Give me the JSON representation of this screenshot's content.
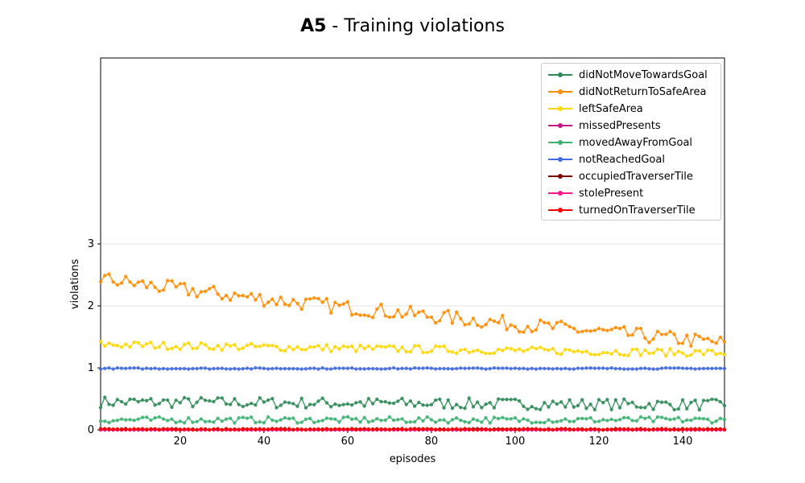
{
  "chart_data": {
    "type": "line",
    "title_bold": "A5",
    "title_rest": " - Training violations",
    "xlabel": "episodes",
    "ylabel": "violations",
    "xlim": [
      1,
      150
    ],
    "ylim": [
      0,
      6
    ],
    "xticks": [
      20,
      40,
      60,
      80,
      100,
      120,
      140
    ],
    "yticks": [
      0,
      1,
      2,
      3
    ],
    "grid": "horizontal",
    "legend_position": "top-right",
    "series": [
      {
        "name": "didNotMoveTowardsGoal",
        "color": "#2e8b57",
        "base": 0.45,
        "amp": 0.09,
        "trend": -0.0003
      },
      {
        "name": "didNotReturnToSafeArea",
        "color": "#ff8c00",
        "start": 2.45,
        "end": 1.4,
        "amp": 0.12
      },
      {
        "name": "leftSafeArea",
        "color": "#ffd700",
        "start": 1.38,
        "end": 1.24,
        "amp": 0.06
      },
      {
        "name": "missedPresents",
        "color": "#c71585",
        "base": 0.0,
        "amp": 0.0
      },
      {
        "name": "movedAwayFromGoal",
        "color": "#3cb371",
        "base": 0.16,
        "amp": 0.05
      },
      {
        "name": "notReachedGoal",
        "color": "#4169e1",
        "base": 0.99,
        "amp": 0.01
      },
      {
        "name": "occupiedTraverserTile",
        "color": "#800000",
        "base": 0.01,
        "amp": 0.01
      },
      {
        "name": "stolePresent",
        "color": "#ff1493",
        "base": 0.0,
        "amp": 0.0
      },
      {
        "name": "turnedOnTraverserTile",
        "color": "#ff0000",
        "base": 0.01,
        "amp": 0.01
      }
    ]
  }
}
